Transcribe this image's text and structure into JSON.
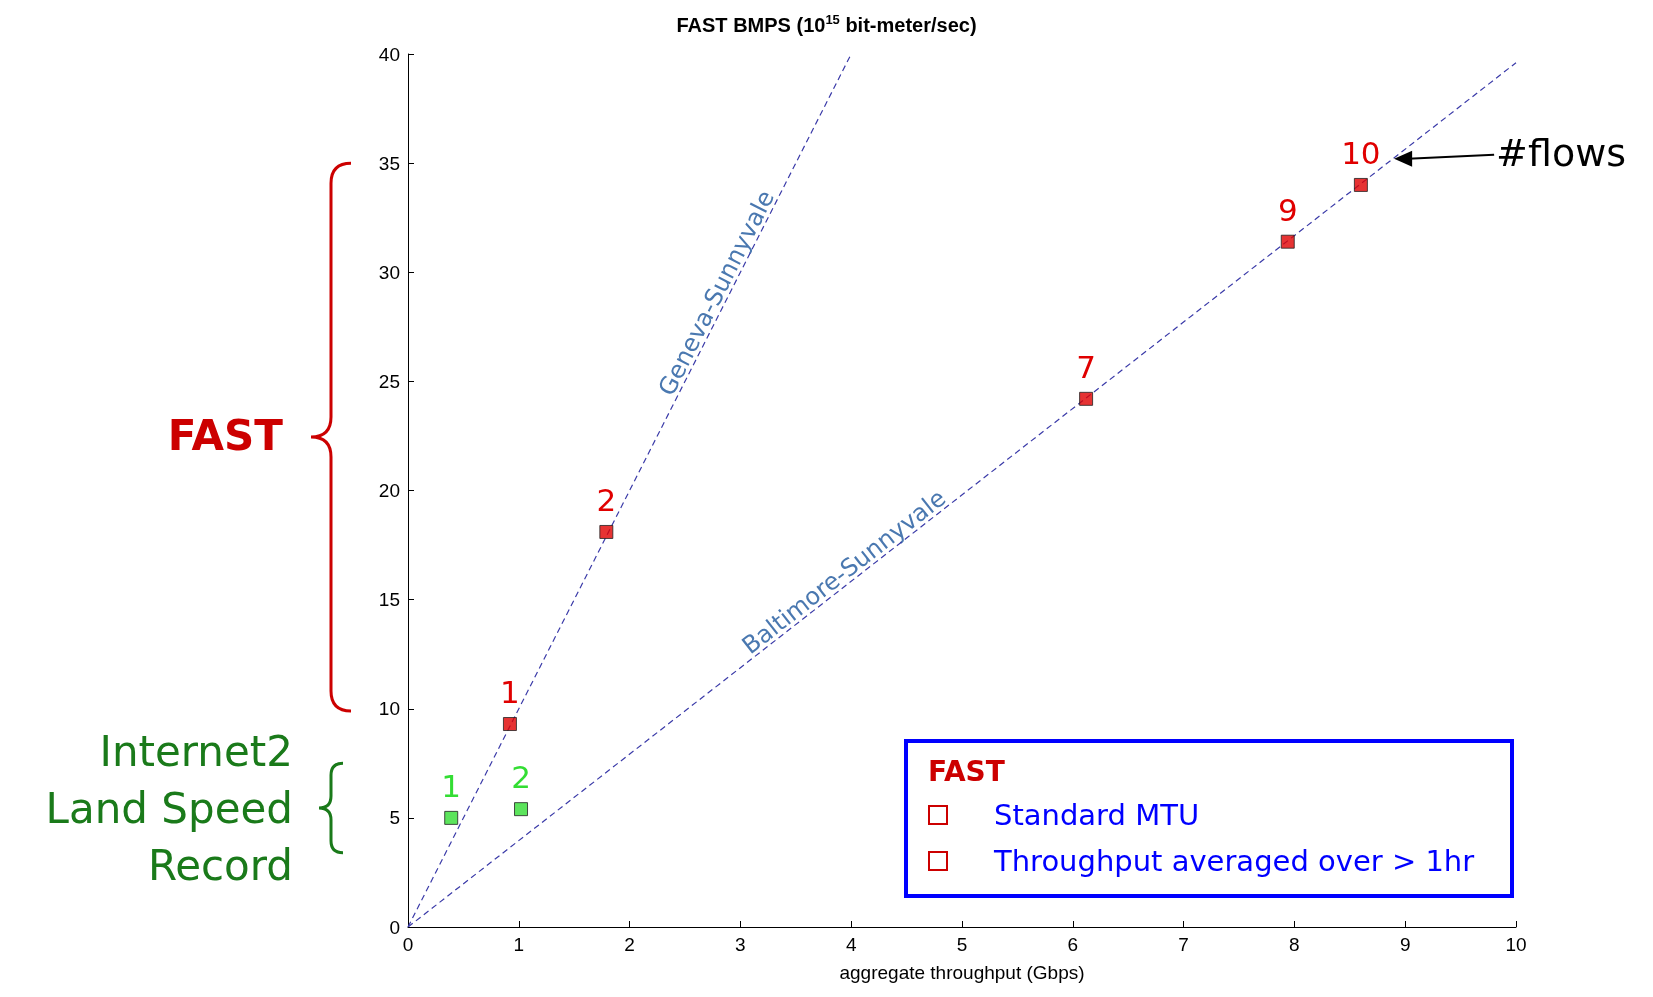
{
  "chart_data": {
    "type": "scatter",
    "title": "FAST BMPS (10$^{15}$ bit-meter/sec)",
    "xlabel": "aggregate throughput (Gbps)",
    "xlim": [
      0,
      10
    ],
    "ylim": [
      0,
      40
    ],
    "xticks": [
      0,
      1,
      2,
      3,
      4,
      5,
      6,
      7,
      8,
      9,
      10
    ],
    "yticks": [
      0,
      5,
      10,
      15,
      20,
      25,
      30,
      35,
      40
    ],
    "grid": false,
    "marker": "square",
    "series": [
      {
        "color": "#e00000",
        "x": [
          0.92,
          1.79,
          6.12,
          7.94,
          8.6
        ],
        "values": [
          9.3,
          18.1,
          24.2,
          31.4,
          34.0
        ]
      },
      {
        "color": "#33dd33",
        "x": [
          0.39,
          1.02
        ],
        "values": [
          5.0,
          5.4
        ]
      },
      {
        "name": "Geneva-Sunnyvale",
        "type": "line",
        "color": "#3a3aa8",
        "line_style": "dashed",
        "marker": "none",
        "x": [
          0,
          4
        ],
        "values": [
          0,
          40
        ]
      },
      {
        "name": "Baltimore-Sunnyvale",
        "type": "line",
        "color": "#3a3aa8",
        "line_style": "dashed",
        "marker": "none",
        "x": [
          0,
          10
        ],
        "values": [
          0,
          39.6
        ]
      }
    ],
    "annotations": [
      "FAST",
      "Internet2 Land Speed Record",
      "FAST",
      "Standard MTU",
      "Throughput averaged over > 1hr",
      {
        "text": "#flows",
        "x": 8.9,
        "y": 35.2
      },
      {
        "text": "1",
        "x": 0.92,
        "y": 9.3
      },
      {
        "text": "2",
        "x": 1.79,
        "y": 18.1
      },
      {
        "text": "7",
        "x": 6.12,
        "y": 24.2
      },
      {
        "text": "9",
        "x": 7.94,
        "y": 31.4
      },
      {
        "text": "10",
        "x": 8.6,
        "y": 34.0
      },
      {
        "text": "1",
        "x": 0.39,
        "y": 5.0
      },
      {
        "text": "2",
        "x": 1.02,
        "y": 5.4
      }
    ]
  }
}
